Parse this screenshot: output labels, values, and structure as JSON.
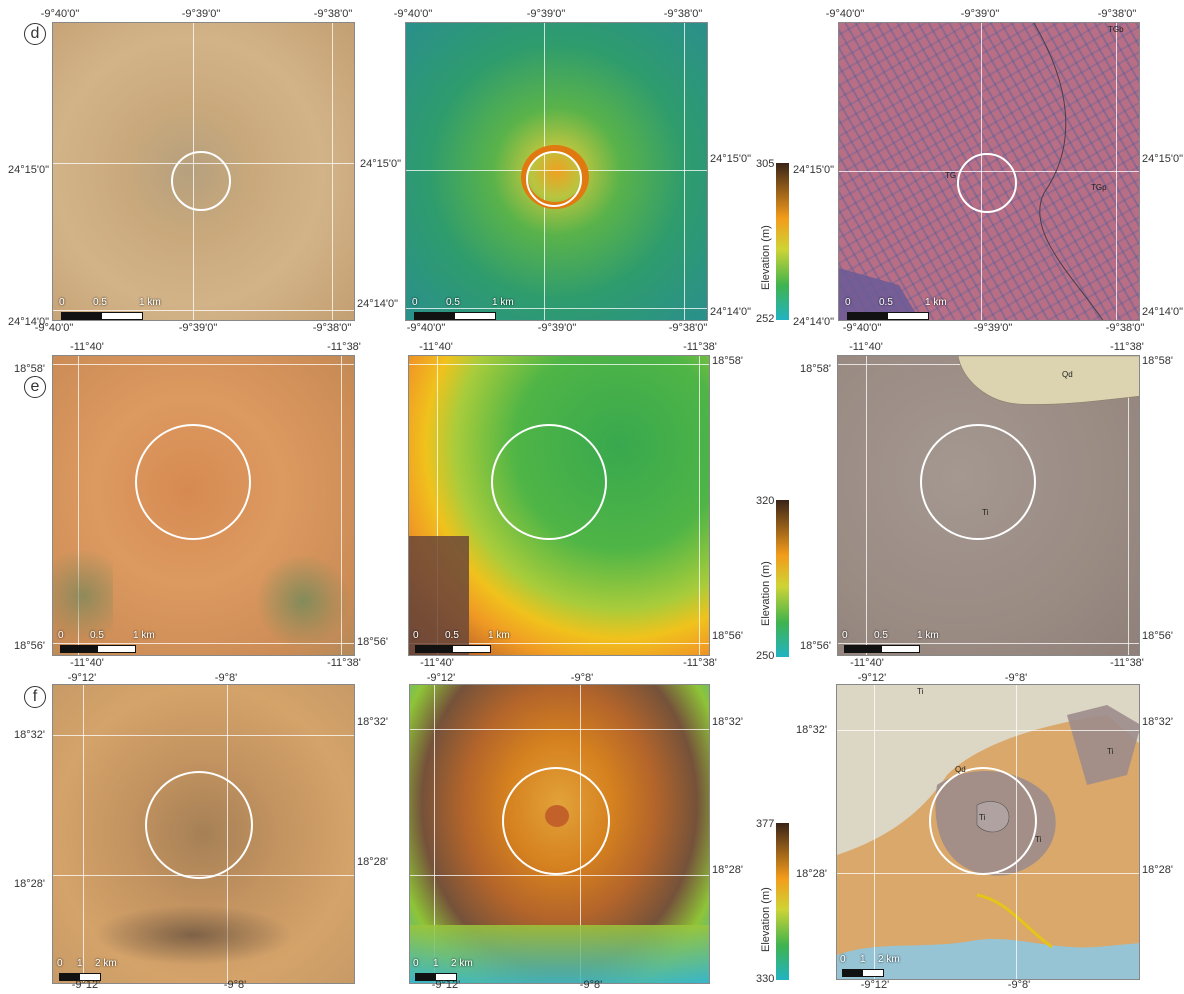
{
  "row_d": {
    "panel_label": "d",
    "top_lons": [
      "-9°40'0\"",
      "-9°39'0\"",
      "-9°38'0\""
    ],
    "bottom_lons": [
      "-9°40'0\"",
      "-9°39'0\"",
      "-9°38'0\""
    ],
    "lat_top": "24°15'0\"",
    "lat_bottom": "24°14'0\"",
    "scale": [
      "0",
      "0.5",
      "1 km"
    ],
    "legend": {
      "title": "Elevation (m)",
      "max": "305",
      "min": "252"
    },
    "geo_labels": [
      "TGb",
      "TG",
      "TGp"
    ]
  },
  "row_e": {
    "panel_label": "e",
    "top_lons": [
      "-11°40'",
      "-11°38'"
    ],
    "bottom_lons": [
      "-11°40'",
      "-11°38'"
    ],
    "lat_top": "18°58'",
    "lat_bottom": "18°56'",
    "scale": [
      "0",
      "0.5",
      "1 km"
    ],
    "legend": {
      "title": "Elevation (m)",
      "max": "320",
      "min": "250"
    },
    "geo_labels": [
      "Qd",
      "Ti"
    ]
  },
  "row_f": {
    "panel_label": "f",
    "top_lons": [
      "-9°12'",
      "-9°8'"
    ],
    "bottom_lons": [
      "-9°12'",
      "-9°8'"
    ],
    "lat_top": "18°32'",
    "lat_bottom": "18°28'",
    "scale": [
      "0",
      "1",
      "2 km"
    ],
    "legend": {
      "title": "Elevation (m)",
      "max": "377",
      "min": "330"
    },
    "geo_labels": [
      "Ti",
      "Qd",
      "Ti",
      "Ti",
      "Ti"
    ]
  },
  "colors": {
    "satellite_d": "#c9a77a",
    "satellite_e": "#d9935a",
    "satellite_f": "#c08a52",
    "dem_low": "#21b3c4",
    "dem_mid": "#f39b1a",
    "dem_high": "#3a2418",
    "geology_d": "#b76d84",
    "geology_e": "#9c8e85",
    "geology_f": "#d9a66a"
  }
}
